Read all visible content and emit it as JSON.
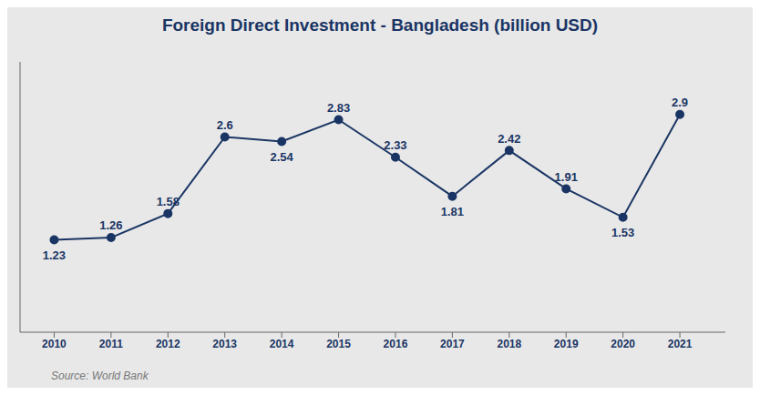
{
  "chart_data": {
    "type": "line",
    "title": "Foreign Direct Investment - Bangladesh (billion USD)",
    "source": "Source: World Bank",
    "x": [
      2010,
      2011,
      2012,
      2013,
      2014,
      2015,
      2016,
      2017,
      2018,
      2019,
      2020,
      2021
    ],
    "values": [
      1.23,
      1.26,
      1.58,
      2.6,
      2.54,
      2.83,
      2.33,
      1.81,
      2.42,
      1.91,
      1.53,
      2.9
    ],
    "color": "#1a3564",
    "xlim": [
      2009.4,
      2021.8
    ],
    "xticks": [
      2010,
      2011,
      2012,
      2013,
      2014,
      2015,
      2016,
      2017,
      2018,
      2019,
      2020,
      2021
    ],
    "ylim": [
      0,
      3.6
    ],
    "tick_labels": "x",
    "grid": false,
    "data_labels": true,
    "marker": "o"
  }
}
